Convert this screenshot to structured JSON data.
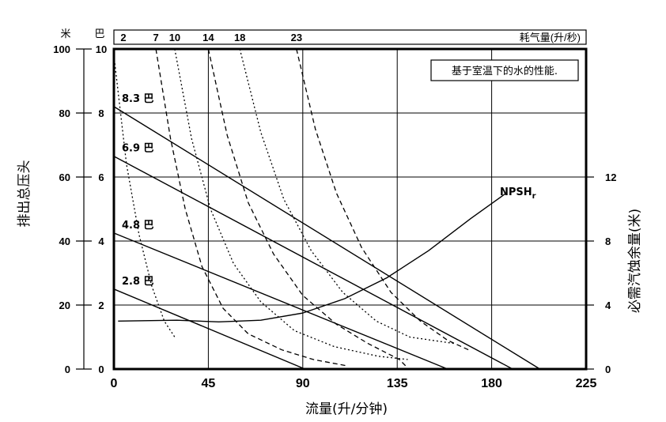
{
  "chart_data": {
    "type": "line",
    "xlabel": "流量(升/分钟)",
    "x_ticks": [
      "0",
      "45",
      "90",
      "135",
      "180",
      "225"
    ],
    "xlim": [
      0,
      225
    ],
    "ylabel_left": "排出总压头",
    "ylabel_right": "必需汽蚀余量(米)",
    "left_unit_meters": "米",
    "left_unit_bar": "巴",
    "y_ticks_meters": [
      "0",
      "20",
      "40",
      "60",
      "80",
      "100"
    ],
    "y_ticks_bar": [
      "0",
      "2",
      "4",
      "6",
      "8",
      "10"
    ],
    "y_ticks_right": [
      "0",
      "4",
      "8",
      "12"
    ],
    "ylim_meters": [
      0,
      100
    ],
    "ylim_right": [
      0,
      20
    ],
    "air_label": "耗气量(升/秒)",
    "air_ticks": [
      "2",
      "7",
      "10",
      "14",
      "18",
      "23"
    ],
    "note": "基于室温下的水的性能.",
    "grid": true,
    "pressure_series": [
      {
        "name": "8.3 巴",
        "values": [
          [
            0,
            82
          ],
          [
            203,
            0
          ]
        ]
      },
      {
        "name": "6.9 巴",
        "values": [
          [
            0,
            66.5
          ],
          [
            190,
            0
          ]
        ]
      },
      {
        "name": "4.8 巴",
        "values": [
          [
            0,
            42.5
          ],
          [
            159,
            0
          ]
        ]
      },
      {
        "name": "2.8 巴",
        "values": [
          [
            0,
            25
          ],
          [
            91,
            0
          ]
        ]
      }
    ],
    "air_series": [
      {
        "name": "2",
        "style": "dotted",
        "values": [
          [
            0,
            98
          ],
          [
            6,
            64
          ],
          [
            12,
            42
          ],
          [
            18,
            26
          ],
          [
            24,
            15
          ],
          [
            29,
            10
          ]
        ]
      },
      {
        "name": "7",
        "style": "dashed",
        "values": [
          [
            20,
            100
          ],
          [
            27,
            72
          ],
          [
            34,
            50
          ],
          [
            42,
            32
          ],
          [
            52,
            19
          ],
          [
            64,
            11
          ],
          [
            80,
            6
          ],
          [
            95,
            3
          ],
          [
            111,
            1
          ]
        ]
      },
      {
        "name": "10",
        "style": "dotted",
        "values": [
          [
            29,
            100
          ],
          [
            37,
            72
          ],
          [
            46,
            50
          ],
          [
            57,
            33
          ],
          [
            70,
            21
          ],
          [
            86,
            12
          ],
          [
            105,
            7
          ],
          [
            126,
            4
          ],
          [
            140,
            3
          ]
        ]
      },
      {
        "name": "14",
        "style": "dashed",
        "values": [
          [
            45,
            100
          ],
          [
            54,
            73
          ],
          [
            64,
            52
          ],
          [
            76,
            36
          ],
          [
            90,
            23
          ],
          [
            106,
            14
          ],
          [
            121,
            8
          ],
          [
            136,
            3
          ],
          [
            139,
            1
          ]
        ]
      },
      {
        "name": "18",
        "style": "dotted",
        "values": [
          [
            60,
            100
          ],
          [
            70,
            74
          ],
          [
            81,
            53
          ],
          [
            94,
            37
          ],
          [
            109,
            24
          ],
          [
            125,
            15
          ],
          [
            141,
            10
          ],
          [
            162,
            8
          ]
        ]
      },
      {
        "name": "23",
        "style": "dashed",
        "values": [
          [
            87,
            100
          ],
          [
            96,
            75
          ],
          [
            106,
            55
          ],
          [
            118,
            38
          ],
          [
            132,
            24
          ],
          [
            146,
            15
          ],
          [
            159,
            9
          ],
          [
            169,
            6
          ]
        ]
      }
    ],
    "npsh": {
      "name": "NPSHr",
      "values": [
        [
          2,
          3.0
        ],
        [
          30,
          3.05
        ],
        [
          50,
          2.95
        ],
        [
          70,
          3.05
        ],
        [
          90,
          3.5
        ],
        [
          110,
          4.4
        ],
        [
          130,
          5.7
        ],
        [
          150,
          7.4
        ],
        [
          170,
          9.4
        ],
        [
          187,
          11.0
        ]
      ]
    }
  }
}
